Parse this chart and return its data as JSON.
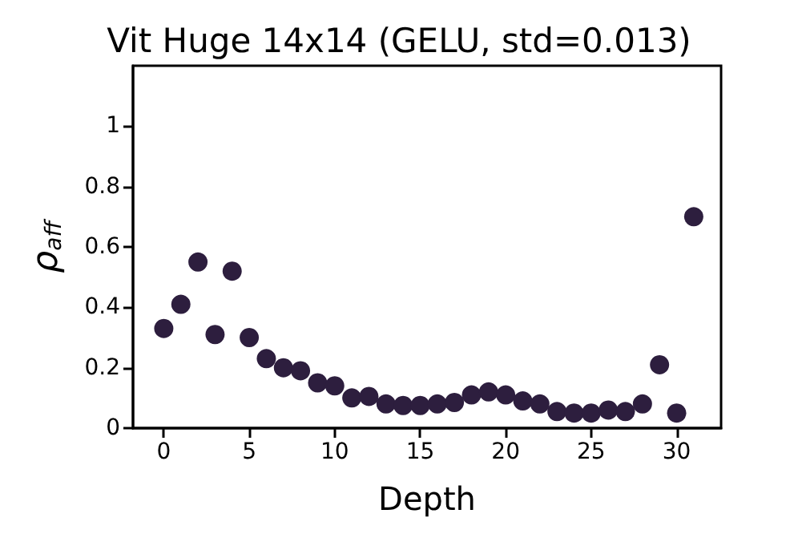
{
  "chart_data": {
    "type": "scatter",
    "title": "Vit Huge 14x14 (GELU, std=0.013)",
    "xlabel": "Depth",
    "ylabel": "ρ$_{aff}$",
    "x": [
      0,
      1,
      2,
      3,
      4,
      5,
      6,
      7,
      8,
      9,
      10,
      11,
      12,
      13,
      14,
      15,
      16,
      17,
      18,
      19,
      20,
      21,
      22,
      23,
      24,
      25,
      26,
      27,
      28,
      29,
      30,
      31
    ],
    "series": [
      {
        "color": "#2d1e3e",
        "values": [
          0.33,
          0.41,
          0.55,
          0.31,
          0.52,
          0.3,
          0.23,
          0.2,
          0.19,
          0.15,
          0.14,
          0.1,
          0.105,
          0.08,
          0.075,
          0.075,
          0.08,
          0.085,
          0.11,
          0.12,
          0.11,
          0.09,
          0.08,
          0.055,
          0.05,
          0.05,
          0.06,
          0.055,
          0.08,
          0.21,
          0.05,
          0.7
        ]
      }
    ],
    "xlim": [
      -1.8,
      32.6
    ],
    "xticks": [
      0,
      5,
      10,
      15,
      20,
      25,
      30
    ],
    "ylim": [
      0,
      1.2
    ],
    "yticks": [
      0,
      0.2,
      0.4,
      0.6,
      0.8,
      1
    ],
    "grid": false,
    "marker": "circle"
  }
}
